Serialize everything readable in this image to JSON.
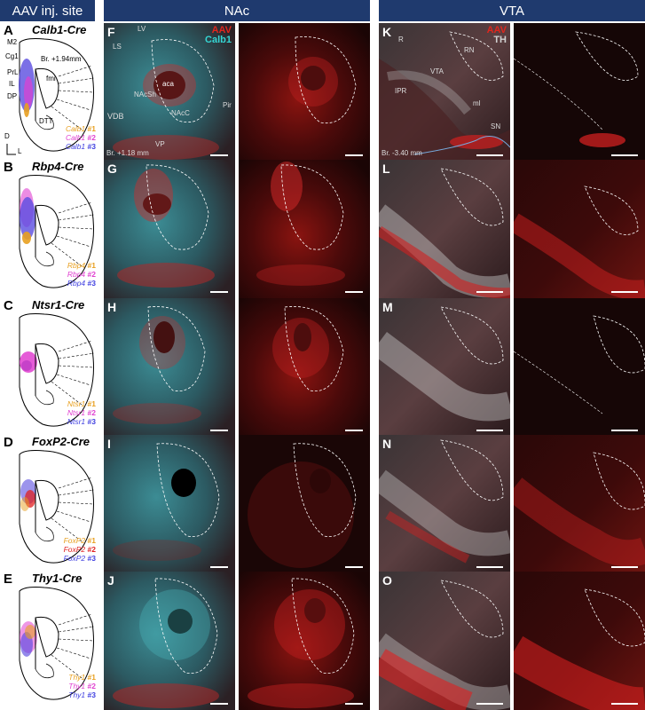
{
  "headers": {
    "aav": "AAV inj. site",
    "nac": "NAc",
    "vta": "VTA"
  },
  "rows": [
    {
      "letter": "A",
      "line": "Calb1-Cre",
      "legend": [
        [
          "Calb1",
          "#1",
          "#e8a020"
        ],
        [
          "Calb1",
          "#2",
          "#e040d0"
        ],
        [
          "Calb1",
          "#3",
          "#4040e0"
        ]
      ],
      "nac_letter": "F",
      "vta_letter": "K"
    },
    {
      "letter": "B",
      "line": "Rbp4-Cre",
      "legend": [
        [
          "Rbp4",
          "#1",
          "#e8a020"
        ],
        [
          "Rbp4",
          "#2",
          "#e040d0"
        ],
        [
          "Rbp4",
          "#3",
          "#4040e0"
        ]
      ],
      "nac_letter": "G",
      "vta_letter": "L"
    },
    {
      "letter": "C",
      "line": "Ntsr1-Cre",
      "legend": [
        [
          "Ntsr1",
          "#1",
          "#e8a020"
        ],
        [
          "Ntsr1",
          "#2",
          "#e040d0"
        ],
        [
          "Ntsr1",
          "#3",
          "#4040e0"
        ]
      ],
      "nac_letter": "H",
      "vta_letter": "M"
    },
    {
      "letter": "D",
      "line": "FoxP2-Cre",
      "legend": [
        [
          "FoxP2",
          "#1",
          "#e8a020"
        ],
        [
          "FoxP2",
          "#2",
          "#e02020"
        ],
        [
          "FoxP2",
          "#3",
          "#4040e0"
        ]
      ],
      "nac_letter": "I",
      "vta_letter": "N"
    },
    {
      "letter": "E",
      "line": "Thy1-Cre",
      "legend": [
        [
          "Thy1",
          "#1",
          "#e8a020"
        ],
        [
          "Thy1",
          "#2",
          "#e040d0"
        ],
        [
          "Thy1",
          "#3",
          "#4040e0"
        ]
      ],
      "nac_letter": "J",
      "vta_letter": "O"
    }
  ],
  "schematic_labels": {
    "m2": "M2",
    "cg1": "Cg1",
    "prl": "PrL",
    "il": "IL",
    "dp": "DP",
    "fmi": "fmi",
    "dtt": "DTT",
    "bregma": "Br. +1.94mm",
    "d": "D",
    "l": "L"
  },
  "nac_labels": {
    "lv": "LV",
    "ls": "LS",
    "aca": "aca",
    "nacsh": "NAcSh",
    "nacc": "NAcC",
    "vdb": "VDB",
    "vp": "VP",
    "pir": "Pir",
    "bregma": "Br. +1.18 mm"
  },
  "vta_labels": {
    "r": "R",
    "rn": "RN",
    "ipr": "IPR",
    "vta": "VTA",
    "ml": "ml",
    "sn": "SN",
    "bregma": "Br. -3.40 mm"
  },
  "channels": {
    "aav": "AAV",
    "calb1": "Calb1",
    "th": "TH"
  },
  "colors": {
    "header_bg": "#1f3a6e",
    "aav_red": "#e0261d",
    "calb1_cyan": "#35d6d4",
    "th_gray": "#d0d0d0"
  }
}
